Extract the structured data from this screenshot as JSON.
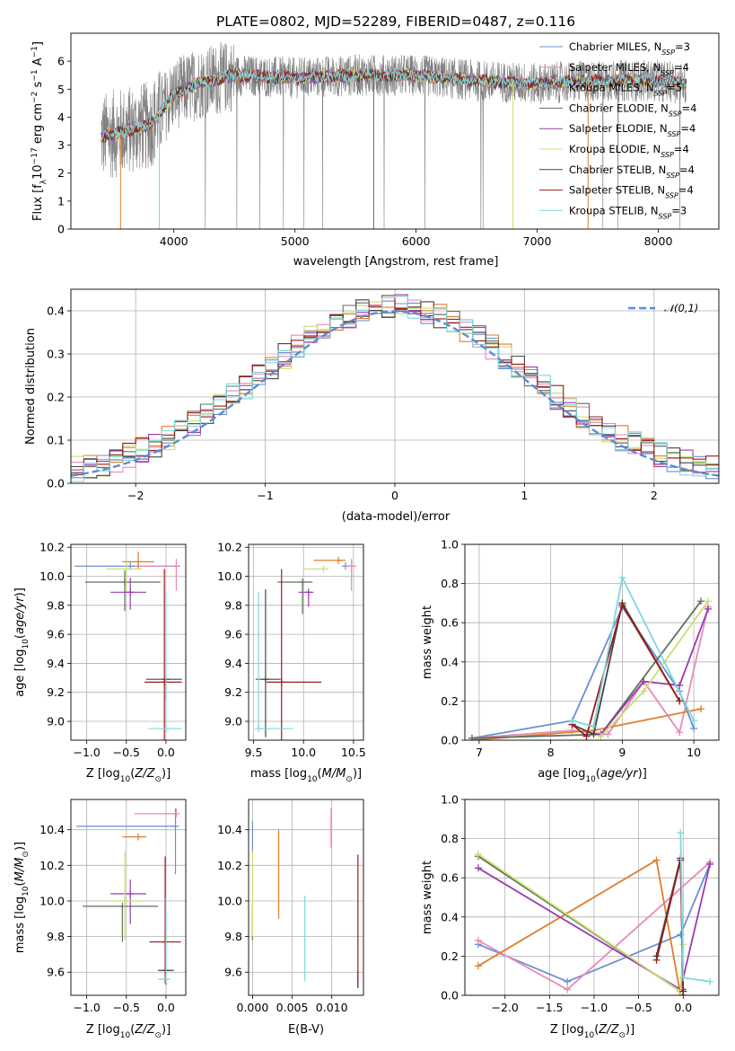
{
  "colors": {
    "Chabrier MILES": "#6a8fd0",
    "Salpeter MILES": "#e88ab8",
    "Kroupa MILES": "#e07f2a",
    "Chabrier ELODIE": "#5d735d",
    "Salpeter ELODIE": "#9a3cb0",
    "Kroupa ELODIE": "#c8e070",
    "Chabrier STELIB": "#444444",
    "Salpeter STELIB": "#9b1c1c",
    "Kroupa STELIB": "#7fd7dd",
    "data": "#808080"
  },
  "chart_data": [
    {
      "id": "spectrum",
      "type": "line",
      "title": "PLATE=0802, MJD=52289, FIBERID=0487, z=0.116",
      "xlabel": "wavelength [Angstrom, rest frame]",
      "ylabel": "Flux [f_λ10^-17 erg cm^-2 s^-1 A^-1]",
      "xlim": [
        3150,
        8500
      ],
      "ylim": [
        0,
        7
      ],
      "xticks": [
        4000,
        5000,
        6000,
        7000,
        8000
      ],
      "yticks": [
        0,
        1,
        2,
        3,
        4,
        5,
        6
      ],
      "legend_position": "upper-right",
      "legend": [
        {
          "model": "Chabrier MILES",
          "nssp": "3"
        },
        {
          "model": "Salpeter MILES",
          "nssp": "4"
        },
        {
          "model": "Kroupa MILES",
          "nssp": "5"
        },
        {
          "model": "Chabrier ELODIE",
          "nssp": "4"
        },
        {
          "model": "Salpeter ELODIE",
          "nssp": "4"
        },
        {
          "model": "Kroupa ELODIE",
          "nssp": "4"
        },
        {
          "model": "Chabrier STELIB",
          "nssp": "4"
        },
        {
          "model": "Salpeter STELIB",
          "nssp": "4"
        },
        {
          "model": "Kroupa STELIB",
          "nssp": "3"
        }
      ],
      "continuum_points": [
        [
          3400,
          3.3
        ],
        [
          3600,
          3.5
        ],
        [
          3800,
          3.7
        ],
        [
          4000,
          4.8
        ],
        [
          4200,
          5.2
        ],
        [
          4500,
          5.5
        ],
        [
          5000,
          5.4
        ],
        [
          5500,
          5.5
        ],
        [
          6000,
          5.5
        ],
        [
          6500,
          5.3
        ],
        [
          7000,
          5.2
        ],
        [
          7500,
          5.3
        ],
        [
          8000,
          5.3
        ],
        [
          8230,
          5.2
        ]
      ],
      "model_range_angstrom": [
        3400,
        8230
      ]
    },
    {
      "id": "residuals",
      "type": "bar",
      "xlabel": "(data-model)/error",
      "ylabel": "Normed distribution",
      "xlim": [
        -2.5,
        2.5
      ],
      "ylim": [
        0,
        0.45
      ],
      "xticks": [
        -2,
        -1,
        0,
        1,
        2
      ],
      "yticks": [
        0.0,
        0.1,
        0.2,
        0.3,
        0.4
      ],
      "legend_position": "upper-right",
      "reference_curve": {
        "name": "𝒩(0,1)",
        "mean": 0,
        "sigma": 1
      },
      "bin_width": 0.1
    },
    {
      "id": "age_vs_Z",
      "type": "scatter",
      "xlabel": "Z [log10(Z/Z⊙)]",
      "ylabel": "age  [log10(age/yr)]",
      "xlim": [
        -1.2,
        0.25
      ],
      "ylim": [
        8.87,
        10.22
      ],
      "xticks": [
        -1.0,
        -0.5,
        0.0
      ],
      "yticks": [
        9.0,
        9.2,
        9.4,
        9.6,
        9.8,
        10.0,
        10.2
      ],
      "points": [
        {
          "model": "Chabrier MILES",
          "x": -0.45,
          "xerr": [
            0.7,
            0.62
          ],
          "y": 10.07,
          "yerr": [
            0.0,
            0.0
          ]
        },
        {
          "model": "Salpeter MILES",
          "x": 0.13,
          "xerr": [
            0.52,
            0.05
          ],
          "y": 10.07,
          "yerr": [
            0.17,
            0.05
          ]
        },
        {
          "model": "Kroupa MILES",
          "x": -0.35,
          "xerr": [
            0.2,
            0.2
          ],
          "y": 10.1,
          "yerr": [
            0.05,
            0.07
          ]
        },
        {
          "model": "Chabrier ELODIE",
          "x": -0.52,
          "xerr": [
            0.5,
            0.45
          ],
          "y": 9.96,
          "yerr": [
            0.2,
            0.08
          ]
        },
        {
          "model": "Salpeter ELODIE",
          "x": -0.45,
          "xerr": [
            0.25,
            0.2
          ],
          "y": 9.89,
          "yerr": [
            0.12,
            0.1
          ]
        },
        {
          "model": "Kroupa ELODIE",
          "x": -0.5,
          "xerr": [
            0.25,
            0.2
          ],
          "y": 10.05,
          "yerr": [
            0.15,
            0.05
          ]
        },
        {
          "model": "Chabrier STELIB",
          "x": 0.0,
          "xerr": [
            0.25,
            0.2
          ],
          "y": 9.29,
          "yerr": [
            0.15,
            0.0
          ]
        },
        {
          "model": "Salpeter STELIB",
          "x": -0.02,
          "xerr": [
            0.25,
            0.22
          ],
          "y": 9.27,
          "yerr": [
            0.42,
            0.78
          ]
        },
        {
          "model": "Kroupa STELIB",
          "x": 0.0,
          "xerr": [
            0.22,
            0.2
          ],
          "y": 8.95,
          "yerr": [
            0.0,
            0.94
          ]
        }
      ]
    },
    {
      "id": "age_vs_mass",
      "type": "scatter",
      "xlabel": "mass [log10(M/M⊙)]",
      "ylabel": "",
      "xlim": [
        9.45,
        10.6
      ],
      "ylim": [
        8.87,
        10.22
      ],
      "xticks": [
        9.5,
        10.0,
        10.5
      ],
      "yticks": [
        9.0,
        9.2,
        9.4,
        9.6,
        9.8,
        10.0,
        10.2
      ],
      "points": [
        {
          "model": "Chabrier MILES",
          "x": 10.42,
          "xerr": [
            0.0,
            0.0
          ],
          "y": 10.07,
          "yerr": [
            0.0,
            0.0
          ]
        },
        {
          "model": "Salpeter MILES",
          "x": 10.48,
          "xerr": [
            0.05,
            0.05
          ],
          "y": 10.07,
          "yerr": [
            0.17,
            0.05
          ]
        },
        {
          "model": "Kroupa MILES",
          "x": 10.35,
          "xerr": [
            0.25,
            0.07
          ],
          "y": 10.11,
          "yerr": [
            0.0,
            0.0
          ]
        },
        {
          "model": "Chabrier ELODIE",
          "x": 9.99,
          "xerr": [
            0.25,
            0.1
          ],
          "y": 9.96,
          "yerr": [
            0.22,
            0.0
          ]
        },
        {
          "model": "Salpeter ELODIE",
          "x": 10.05,
          "xerr": [
            0.1,
            0.05
          ],
          "y": 9.89,
          "yerr": [
            0.1,
            0.0
          ]
        },
        {
          "model": "Kroupa ELODIE",
          "x": 10.2,
          "xerr": [
            0.2,
            0.05
          ],
          "y": 10.05,
          "yerr": [
            0.0,
            0.0
          ]
        },
        {
          "model": "Chabrier STELIB",
          "x": 9.62,
          "xerr": [
            0.1,
            0.15
          ],
          "y": 9.29,
          "yerr": [
            0.4,
            0.62
          ]
        },
        {
          "model": "Salpeter STELIB",
          "x": 9.78,
          "xerr": [
            0.15,
            0.4
          ],
          "y": 9.27,
          "yerr": [
            0.42,
            0.78
          ]
        },
        {
          "model": "Kroupa STELIB",
          "x": 9.55,
          "xerr": [
            0.0,
            0.35
          ],
          "y": 8.95,
          "yerr": [
            0.0,
            0.94
          ]
        }
      ]
    },
    {
      "id": "massweight_vs_age",
      "type": "line",
      "xlabel": "age  [log10(age/yr)]",
      "ylabel": "mass weight",
      "xlim": [
        6.8,
        10.35
      ],
      "ylim": [
        0,
        1
      ],
      "xticks": [
        7,
        8,
        9,
        10
      ],
      "yticks": [
        0.0,
        0.2,
        0.4,
        0.6,
        0.8,
        1.0
      ],
      "series": [
        {
          "model": "Chabrier MILES",
          "x": [
            6.9,
            8.3,
            9.0,
            9.8,
            10.0
          ],
          "y": [
            0.01,
            0.1,
            0.68,
            0.25,
            0.06
          ]
        },
        {
          "model": "Salpeter MILES",
          "x": [
            6.9,
            8.3,
            8.8,
            9.3,
            9.8,
            10.2
          ],
          "y": [
            0.01,
            0.05,
            0.03,
            0.3,
            0.04,
            0.68
          ]
        },
        {
          "model": "Kroupa MILES",
          "x": [
            6.9,
            8.6,
            10.1
          ],
          "y": [
            0.0,
            0.05,
            0.16
          ]
        },
        {
          "model": "Chabrier ELODIE",
          "x": [
            6.9,
            8.7,
            10.1
          ],
          "y": [
            0.01,
            0.03,
            0.71
          ]
        },
        {
          "model": "Salpeter ELODIE",
          "x": [
            8.7,
            9.3,
            9.8,
            10.2
          ],
          "y": [
            0.03,
            0.3,
            0.28,
            0.67
          ]
        },
        {
          "model": "Kroupa ELODIE",
          "x": [
            8.7,
            9.3,
            10.2
          ],
          "y": [
            0.02,
            0.25,
            0.71
          ]
        },
        {
          "model": "Chabrier STELIB",
          "x": [
            8.3,
            8.6,
            9.0,
            9.8
          ],
          "y": [
            0.08,
            0.03,
            0.7,
            0.2
          ]
        },
        {
          "model": "Salpeter STELIB",
          "x": [
            8.3,
            8.5,
            9.0,
            9.8
          ],
          "y": [
            0.08,
            0.02,
            0.69,
            0.2
          ]
        },
        {
          "model": "Kroupa STELIB",
          "x": [
            8.3,
            8.6,
            9.0,
            10.0
          ],
          "y": [
            0.1,
            0.07,
            0.83,
            0.1
          ]
        }
      ]
    },
    {
      "id": "mass_vs_Z",
      "type": "scatter",
      "xlabel": "Z [log10(Z/Z⊙)]",
      "ylabel": "mass [log10(M/M⊙)]",
      "xlim": [
        -1.2,
        0.25
      ],
      "ylim": [
        9.47,
        10.57
      ],
      "xticks": [
        -1.0,
        -0.5,
        0.0
      ],
      "yticks": [
        9.6,
        9.8,
        10.0,
        10.2,
        10.4
      ],
      "points": [
        {
          "model": "Chabrier MILES",
          "x": 0.12,
          "xerr": [
            1.25,
            0.0
          ],
          "y": 10.42,
          "yerr": [
            0.27,
            0.1
          ]
        },
        {
          "model": "Salpeter MILES",
          "x": 0.13,
          "xerr": [
            0.53,
            0.0
          ],
          "y": 10.49,
          "yerr": [
            0.0,
            0.03
          ]
        },
        {
          "model": "Kroupa MILES",
          "x": -0.35,
          "xerr": [
            0.2,
            0.1
          ],
          "y": 10.36,
          "yerr": [
            0.0,
            0.0
          ]
        },
        {
          "model": "Chabrier ELODIE",
          "x": -0.55,
          "xerr": [
            0.5,
            0.45
          ],
          "y": 9.97,
          "yerr": [
            0.2,
            0.0
          ]
        },
        {
          "model": "Salpeter ELODIE",
          "x": -0.45,
          "xerr": [
            0.25,
            0.2
          ],
          "y": 10.04,
          "yerr": [
            0.17,
            0.08
          ]
        },
        {
          "model": "Kroupa ELODIE",
          "x": -0.52,
          "xerr": [
            0.2,
            0.25
          ],
          "y": 10.0,
          "yerr": [
            0.22,
            0.28
          ]
        },
        {
          "model": "Chabrier STELIB",
          "x": 0.0,
          "xerr": [
            0.1,
            0.1
          ],
          "y": 9.61,
          "yerr": [
            0.08,
            0.0
          ]
        },
        {
          "model": "Salpeter STELIB",
          "x": -0.01,
          "xerr": [
            0.2,
            0.2
          ],
          "y": 9.77,
          "yerr": [
            0.23,
            0.48
          ]
        },
        {
          "model": "Kroupa STELIB",
          "x": 0.0,
          "xerr": [
            0.1,
            0.05
          ],
          "y": 9.56,
          "yerr": [
            0.0,
            0.46
          ]
        }
      ]
    },
    {
      "id": "mass_vs_ebv",
      "type": "scatter",
      "xlabel": "E(B-V)",
      "ylabel": "",
      "xlim": [
        -0.0005,
        0.014
      ],
      "ylim": [
        9.47,
        10.57
      ],
      "xticks": [
        0.0,
        0.005,
        0.01
      ],
      "xtick_labels": [
        "0.000",
        "0.005",
        "0.010"
      ],
      "yticks": [
        9.6,
        9.8,
        10.0,
        10.2,
        10.4
      ],
      "points": [
        {
          "model": "Chabrier MILES",
          "x": 0.0,
          "y": 10.37,
          "yerr": [
            0.1,
            0.08
          ]
        },
        {
          "model": "Salpeter MILES",
          "x": 0.0099,
          "y": 10.42,
          "yerr": [
            0.12,
            0.1
          ]
        },
        {
          "model": "Kroupa MILES",
          "x": 0.0033,
          "y": 10.15,
          "yerr": [
            0.25,
            0.25
          ]
        },
        {
          "model": "Chabrier ELODIE",
          "x": 0.0,
          "y": 9.98,
          "yerr": [
            0.2,
            0.0
          ]
        },
        {
          "model": "Salpeter ELODIE",
          "x": 0.0,
          "y": 10.0,
          "yerr": [
            0.0,
            0.0
          ]
        },
        {
          "model": "Kroupa ELODIE",
          "x": 0.0,
          "y": 10.02,
          "yerr": [
            0.22,
            0.26
          ]
        },
        {
          "model": "Chabrier STELIB",
          "x": 0.0133,
          "y": 9.61,
          "yerr": [
            0.1,
            0.0
          ]
        },
        {
          "model": "Salpeter STELIB",
          "x": 0.0133,
          "y": 9.9,
          "yerr": [
            0.37,
            0.36
          ]
        },
        {
          "model": "Kroupa STELIB",
          "x": 0.0066,
          "y": 9.79,
          "yerr": [
            0.24,
            0.24
          ]
        }
      ]
    },
    {
      "id": "massweight_vs_Z",
      "type": "line",
      "xlabel": "Z [log10(Z/Z⊙)]",
      "ylabel": "mass weight",
      "xlim": [
        -2.45,
        0.4
      ],
      "ylim": [
        0,
        1
      ],
      "xticks": [
        -2.0,
        -1.5,
        -1.0,
        -0.5,
        0.0
      ],
      "yticks": [
        0.0,
        0.2,
        0.4,
        0.6,
        0.8,
        1.0
      ],
      "series": [
        {
          "model": "Chabrier MILES",
          "x": [
            -2.3,
            -1.3,
            -0.03,
            0.3
          ],
          "y": [
            0.26,
            0.07,
            0.31,
            0.67
          ]
        },
        {
          "model": "Salpeter MILES",
          "x": [
            -2.3,
            -1.3,
            0.3
          ],
          "y": [
            0.28,
            0.03,
            0.68
          ]
        },
        {
          "model": "Kroupa MILES",
          "x": [
            -2.3,
            -0.3,
            -0.03
          ],
          "y": [
            0.15,
            0.69,
            0.0
          ]
        },
        {
          "model": "Chabrier ELODIE",
          "x": [
            -2.3,
            -0.03,
            0.0
          ],
          "y": [
            0.71,
            0.02,
            0.03
          ]
        },
        {
          "model": "Salpeter ELODIE",
          "x": [
            -2.3,
            -0.03,
            0.3
          ],
          "y": [
            0.65,
            0.03,
            0.67
          ]
        },
        {
          "model": "Kroupa ELODIE",
          "x": [
            -2.3,
            -0.03,
            0.0
          ],
          "y": [
            0.72,
            0.02,
            0.26
          ]
        },
        {
          "model": "Chabrier STELIB",
          "x": [
            -0.3,
            -0.03,
            0.0
          ],
          "y": [
            0.2,
            0.7,
            0.0
          ]
        },
        {
          "model": "Salpeter STELIB",
          "x": [
            -0.3,
            -0.03,
            0.0
          ],
          "y": [
            0.18,
            0.69,
            0.02
          ]
        },
        {
          "model": "Kroupa STELIB",
          "x": [
            -0.03,
            0.0,
            0.3
          ],
          "y": [
            0.83,
            0.09,
            0.07
          ]
        }
      ]
    }
  ]
}
